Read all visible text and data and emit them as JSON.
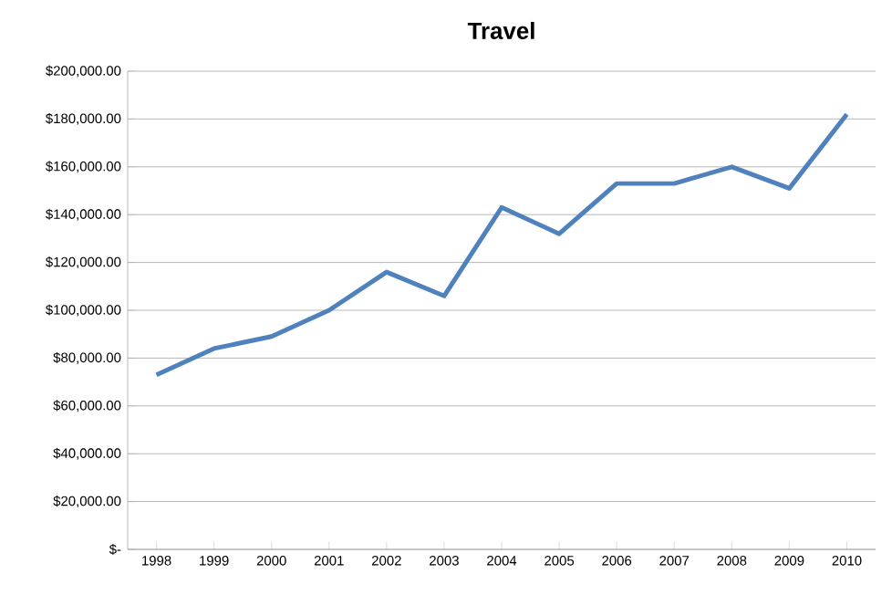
{
  "chart_data": {
    "type": "line",
    "title": "Travel",
    "categories": [
      "1998",
      "1999",
      "2000",
      "2001",
      "2002",
      "2003",
      "2004",
      "2005",
      "2006",
      "2007",
      "2008",
      "2009",
      "2010"
    ],
    "values": [
      73000,
      84000,
      89000,
      100000,
      116000,
      106000,
      143000,
      132000,
      153000,
      153000,
      160000,
      151000,
      182000
    ],
    "color": "#4f81bd",
    "ylim": [
      0,
      200000
    ],
    "yticks": [
      {
        "value": 0,
        "label": "$-"
      },
      {
        "value": 20000,
        "label": "$20,000.00"
      },
      {
        "value": 40000,
        "label": "$40,000.00"
      },
      {
        "value": 60000,
        "label": "$60,000.00"
      },
      {
        "value": 80000,
        "label": "$80,000.00"
      },
      {
        "value": 100000,
        "label": "$100,000.00"
      },
      {
        "value": 120000,
        "label": "$120,000.00"
      },
      {
        "value": 140000,
        "label": "$140,000.00"
      },
      {
        "value": 160000,
        "label": "$160,000.00"
      },
      {
        "value": 180000,
        "label": "$180,000.00"
      },
      {
        "value": 200000,
        "label": "$200,000.00"
      }
    ],
    "grid": "y",
    "marker": "none",
    "line_style": "solid"
  }
}
